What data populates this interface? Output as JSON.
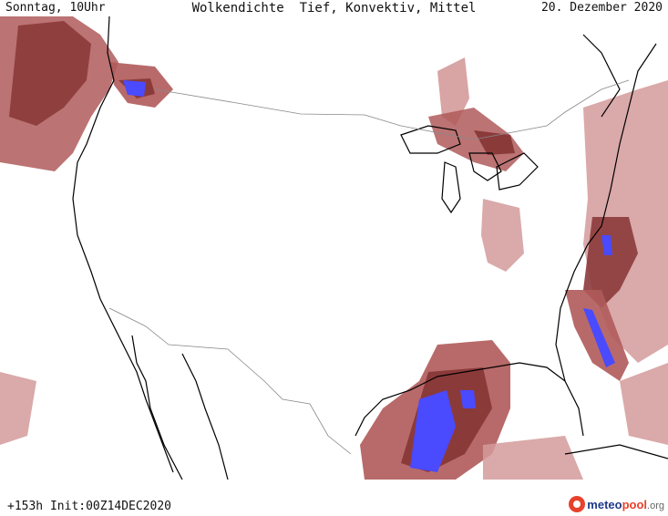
{
  "header": {
    "left": "Sonntag, 10Uhr",
    "title": "Wolkendichte  Tief, Konvektiv, Mittel",
    "date": "20. Dezember 2020"
  },
  "footer": {
    "run_info": "+153h Init:00Z14DEC2020",
    "logo_meteo": "meteo",
    "logo_pool": "pool",
    "logo_tld": ".org"
  },
  "colors": {
    "cloud_dark": "#8b3a3a",
    "cloud_mid": "#b05a5a",
    "cloud_light": "#d49a9a",
    "convective": "#4a4aff",
    "coast": "#000000",
    "border": "#888888"
  }
}
